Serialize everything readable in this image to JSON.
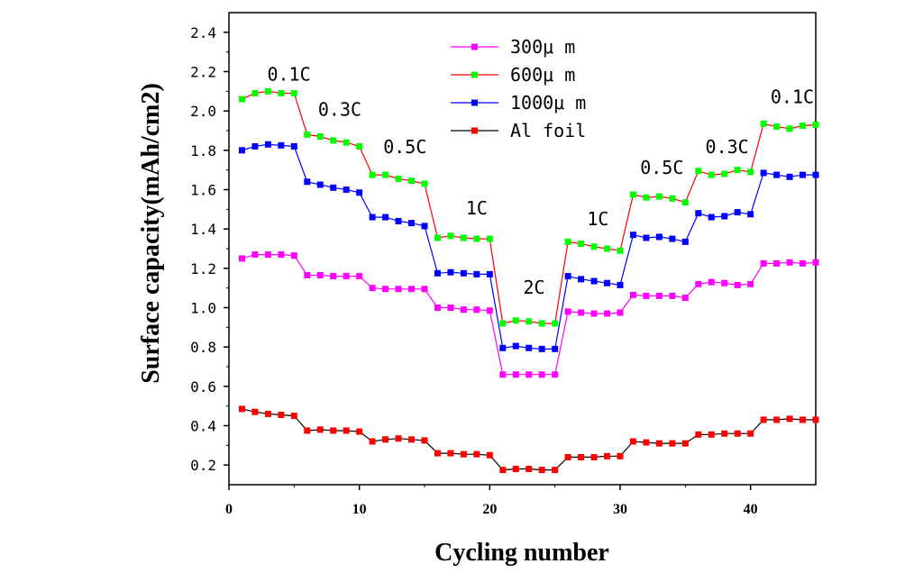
{
  "chart_data": {
    "type": "line",
    "xlabel": "Cycling number",
    "ylabel": "Surface capacity(mAh/cm2)",
    "xlim": [
      0,
      45
    ],
    "ylim": [
      0.1,
      2.5
    ],
    "xticks": [
      0,
      10,
      20,
      30,
      40
    ],
    "xtick_labels": [
      "0",
      "10",
      "20",
      "30",
      "40"
    ],
    "yticks": [
      0.2,
      0.4,
      0.6,
      0.8,
      1.0,
      1.2,
      1.4,
      1.6,
      1.8,
      2.0,
      2.2,
      2.4
    ],
    "ytick_labels": [
      "0.2",
      "0.4",
      "0.6",
      "0.8",
      "1.0",
      "1.2",
      "1.4",
      "1.6",
      "1.8",
      "2.0",
      "2.2",
      "2.4"
    ],
    "legend_position": "top-center",
    "series": [
      {
        "name": "300μ m",
        "color": "#ff00ff",
        "x": [
          1,
          2,
          3,
          4,
          5,
          6,
          7,
          8,
          9,
          10,
          11,
          12,
          13,
          14,
          15,
          16,
          17,
          18,
          19,
          20,
          21,
          22,
          23,
          24,
          25,
          26,
          27,
          28,
          29,
          30,
          31,
          32,
          33,
          34,
          35,
          36,
          37,
          38,
          39,
          40,
          41,
          42,
          43,
          44,
          45
        ],
        "values": [
          1.25,
          1.27,
          1.27,
          1.27,
          1.265,
          1.165,
          1.165,
          1.16,
          1.16,
          1.16,
          1.1,
          1.095,
          1.095,
          1.095,
          1.095,
          1.0,
          1.0,
          0.99,
          0.99,
          0.985,
          0.66,
          0.66,
          0.66,
          0.66,
          0.66,
          0.98,
          0.975,
          0.97,
          0.97,
          0.975,
          1.065,
          1.06,
          1.06,
          1.06,
          1.05,
          1.12,
          1.13,
          1.125,
          1.115,
          1.12,
          1.225,
          1.225,
          1.23,
          1.225,
          1.23
        ]
      },
      {
        "name": "600μ m",
        "color": "#00ff00",
        "line_color": "#ff0000",
        "x": [
          1,
          2,
          3,
          4,
          5,
          6,
          7,
          8,
          9,
          10,
          11,
          12,
          13,
          14,
          15,
          16,
          17,
          18,
          19,
          20,
          21,
          22,
          23,
          24,
          25,
          26,
          27,
          28,
          29,
          30,
          31,
          32,
          33,
          34,
          35,
          36,
          37,
          38,
          39,
          40,
          41,
          42,
          43,
          44,
          45
        ],
        "values": [
          2.06,
          2.09,
          2.1,
          2.09,
          2.09,
          1.88,
          1.87,
          1.85,
          1.84,
          1.82,
          1.675,
          1.675,
          1.655,
          1.645,
          1.63,
          1.355,
          1.365,
          1.355,
          1.35,
          1.35,
          0.92,
          0.935,
          0.93,
          0.92,
          0.92,
          1.335,
          1.325,
          1.31,
          1.3,
          1.29,
          1.575,
          1.56,
          1.565,
          1.555,
          1.535,
          1.695,
          1.675,
          1.68,
          1.7,
          1.69,
          1.935,
          1.92,
          1.91,
          1.925,
          1.93
        ]
      },
      {
        "name": "1000μ m",
        "color": "#0000ff",
        "x": [
          1,
          2,
          3,
          4,
          5,
          6,
          7,
          8,
          9,
          10,
          11,
          12,
          13,
          14,
          15,
          16,
          17,
          18,
          19,
          20,
          21,
          22,
          23,
          24,
          25,
          26,
          27,
          28,
          29,
          30,
          31,
          32,
          33,
          34,
          35,
          36,
          37,
          38,
          39,
          40,
          41,
          42,
          43,
          44,
          45
        ],
        "values": [
          1.8,
          1.82,
          1.83,
          1.825,
          1.82,
          1.64,
          1.625,
          1.61,
          1.6,
          1.585,
          1.46,
          1.46,
          1.44,
          1.43,
          1.415,
          1.175,
          1.18,
          1.175,
          1.17,
          1.17,
          0.795,
          0.805,
          0.795,
          0.79,
          0.79,
          1.16,
          1.145,
          1.135,
          1.125,
          1.115,
          1.37,
          1.355,
          1.36,
          1.35,
          1.335,
          1.48,
          1.46,
          1.465,
          1.485,
          1.475,
          1.685,
          1.675,
          1.665,
          1.675,
          1.675
        ]
      },
      {
        "name": "Al foil",
        "color": "#ff0000",
        "line_color": "#000000",
        "x": [
          1,
          2,
          3,
          4,
          5,
          6,
          7,
          8,
          9,
          10,
          11,
          12,
          13,
          14,
          15,
          16,
          17,
          18,
          19,
          20,
          21,
          22,
          23,
          24,
          25,
          26,
          27,
          28,
          29,
          30,
          31,
          32,
          33,
          34,
          35,
          36,
          37,
          38,
          39,
          40,
          41,
          42,
          43,
          44,
          45
        ],
        "values": [
          0.485,
          0.47,
          0.46,
          0.455,
          0.45,
          0.375,
          0.38,
          0.375,
          0.375,
          0.37,
          0.32,
          0.33,
          0.335,
          0.33,
          0.325,
          0.26,
          0.26,
          0.255,
          0.255,
          0.25,
          0.175,
          0.18,
          0.18,
          0.175,
          0.175,
          0.24,
          0.24,
          0.24,
          0.245,
          0.245,
          0.32,
          0.315,
          0.31,
          0.31,
          0.31,
          0.355,
          0.355,
          0.36,
          0.36,
          0.36,
          0.43,
          0.43,
          0.435,
          0.43,
          0.43
        ]
      }
    ],
    "annotations": [
      {
        "text": "0.1C",
        "x": 4.6,
        "y": 2.155
      },
      {
        "text": "0.3C",
        "x": 8.5,
        "y": 1.975
      },
      {
        "text": "0.5C",
        "x": 13.5,
        "y": 1.785
      },
      {
        "text": "1C",
        "x": 19.0,
        "y": 1.475
      },
      {
        "text": "2C",
        "x": 23.4,
        "y": 1.07
      },
      {
        "text": "1C",
        "x": 28.3,
        "y": 1.42
      },
      {
        "text": "0.5C",
        "x": 33.2,
        "y": 1.68
      },
      {
        "text": "0.3C",
        "x": 38.2,
        "y": 1.785
      },
      {
        "text": "0.1C",
        "x": 43.2,
        "y": 2.04
      }
    ]
  }
}
